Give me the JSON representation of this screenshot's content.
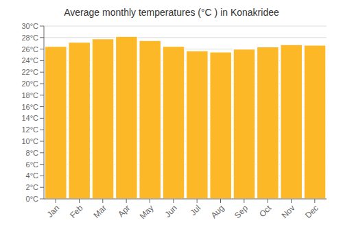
{
  "chart_data": {
    "type": "bar",
    "title": "Average monthly temperatures (°C ) in Konakridee",
    "categories": [
      "Jan",
      "Feb",
      "Mar",
      "Apr",
      "May",
      "Jun",
      "Jul",
      "Aug",
      "Sep",
      "Oct",
      "Nov",
      "Dec"
    ],
    "values": [
      26.5,
      27.2,
      27.8,
      28.2,
      27.5,
      26.5,
      25.7,
      25.5,
      26.0,
      26.4,
      26.8,
      26.7
    ],
    "color": "#FDB827",
    "ylim": [
      0,
      30
    ],
    "yticks": [
      {
        "value": 0,
        "label": "0°C"
      },
      {
        "value": 2,
        "label": "2°C"
      },
      {
        "value": 4,
        "label": "4°C"
      },
      {
        "value": 6,
        "label": "6°C"
      },
      {
        "value": 8,
        "label": "8°C"
      },
      {
        "value": 10,
        "label": "10°C"
      },
      {
        "value": 12,
        "label": "12°C"
      },
      {
        "value": 14,
        "label": "14°C"
      },
      {
        "value": 16,
        "label": "16°C"
      },
      {
        "value": 18,
        "label": "18°C"
      },
      {
        "value": 20,
        "label": "20°C"
      },
      {
        "value": 22,
        "label": "22°C"
      },
      {
        "value": 24,
        "label": "24°C"
      },
      {
        "value": 26,
        "label": "26°C"
      },
      {
        "value": 28,
        "label": "28°C"
      },
      {
        "value": 30,
        "label": "30°C"
      }
    ],
    "grid": true
  }
}
